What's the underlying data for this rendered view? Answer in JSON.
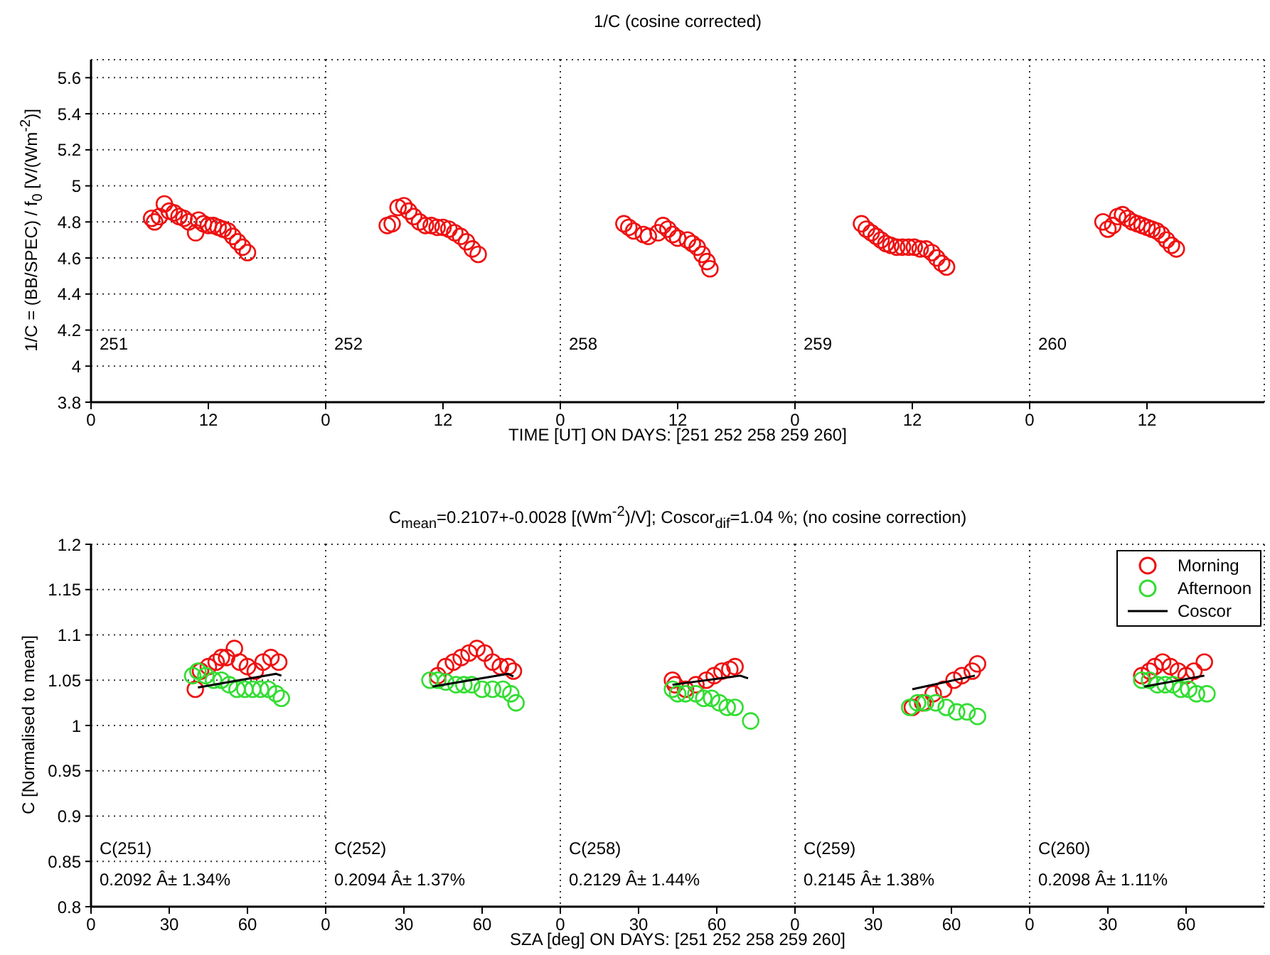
{
  "chart_data": [
    {
      "type": "scatter",
      "ylabel": "1/C = (BB/SPEC) / f$_{0}$  [V/(Wm$^{-2}$)]",
      "marker": "circle",
      "grid": true,
      "xlim": [
        0,
        24
      ],
      "xticks": [
        0,
        12
      ],
      "ylim": [
        3.8,
        5.7
      ],
      "yticks": [
        3.8,
        4,
        4.2,
        4.4,
        4.6,
        4.8,
        5,
        5.2,
        5.4,
        5.6
      ],
      "annotations": [
        "251"
      ],
      "color": "#ee1111",
      "x": [
        6.2,
        6.5,
        7,
        7.5,
        8,
        8.5,
        9,
        9.5,
        10,
        10.7,
        11,
        11.5,
        12,
        12.5,
        13,
        13.5,
        14,
        14.5,
        15,
        15.5,
        16
      ],
      "values": [
        4.82,
        4.8,
        4.83,
        4.9,
        4.86,
        4.85,
        4.83,
        4.82,
        4.8,
        4.74,
        4.81,
        4.79,
        4.78,
        4.78,
        4.77,
        4.76,
        4.75,
        4.72,
        4.69,
        4.66,
        4.63
      ]
    },
    {
      "type": "scatter",
      "marker": "circle",
      "grid": true,
      "tick_labels": "x",
      "xlim": [
        0,
        24
      ],
      "xticks": [
        0,
        12
      ],
      "ylim": [
        3.8,
        5.7
      ],
      "yticks": [
        3.8,
        4,
        4.2,
        4.4,
        4.6,
        4.8,
        5,
        5.2,
        5.4,
        5.6
      ],
      "annotations": [
        "252"
      ],
      "color": "#ee1111",
      "x": [
        6.3,
        6.8,
        7.4,
        8,
        8.5,
        9,
        9.6,
        10.2,
        10.8,
        11.4,
        12,
        12.6,
        13.2,
        13.8,
        14.4,
        15,
        15.6
      ],
      "values": [
        4.78,
        4.79,
        4.88,
        4.89,
        4.86,
        4.83,
        4.8,
        4.78,
        4.78,
        4.77,
        4.77,
        4.76,
        4.74,
        4.72,
        4.69,
        4.65,
        4.62
      ]
    },
    {
      "type": "scatter",
      "title": "1/C (cosine corrected)",
      "xlabel": "TIME [UT]  ON  DAYS: [251  252  258  259  260]",
      "marker": "circle",
      "grid": true,
      "tick_labels": "x",
      "xlim": [
        0,
        24
      ],
      "xticks": [
        0,
        12
      ],
      "ylim": [
        3.8,
        5.7
      ],
      "yticks": [
        3.8,
        4,
        4.2,
        4.4,
        4.6,
        4.8,
        5,
        5.2,
        5.4,
        5.6
      ],
      "annotations": [
        "258"
      ],
      "color": "#ee1111",
      "x": [
        6.5,
        7,
        7.5,
        8.5,
        9,
        10,
        10.5,
        11,
        11.5,
        12,
        13,
        13.5,
        14,
        14.5,
        15,
        15.3
      ],
      "values": [
        4.79,
        4.77,
        4.75,
        4.73,
        4.72,
        4.74,
        4.78,
        4.76,
        4.73,
        4.71,
        4.7,
        4.68,
        4.66,
        4.62,
        4.58,
        4.54
      ]
    },
    {
      "type": "scatter",
      "marker": "circle",
      "grid": true,
      "tick_labels": "x",
      "xlim": [
        0,
        24
      ],
      "xticks": [
        0,
        12
      ],
      "ylim": [
        3.8,
        5.7
      ],
      "yticks": [
        3.8,
        4,
        4.2,
        4.4,
        4.6,
        4.8,
        5,
        5.2,
        5.4,
        5.6
      ],
      "annotations": [
        "259"
      ],
      "color": "#ee1111",
      "x": [
        6.8,
        7.3,
        7.8,
        8.3,
        8.8,
        9.3,
        9.8,
        10.4,
        11,
        11.6,
        12.2,
        12.8,
        13.4,
        14,
        14.5,
        15,
        15.5
      ],
      "values": [
        4.79,
        4.76,
        4.74,
        4.72,
        4.7,
        4.68,
        4.67,
        4.66,
        4.66,
        4.66,
        4.66,
        4.65,
        4.65,
        4.63,
        4.6,
        4.57,
        4.55
      ]
    },
    {
      "type": "scatter",
      "marker": "circle",
      "grid": true,
      "tick_labels": "x",
      "xlim": [
        0,
        24
      ],
      "xticks": [
        0,
        12
      ],
      "ylim": [
        3.8,
        5.7
      ],
      "yticks": [
        3.8,
        4,
        4.2,
        4.4,
        4.6,
        4.8,
        5,
        5.2,
        5.4,
        5.6
      ],
      "annotations": [
        "260"
      ],
      "color": "#ee1111",
      "x": [
        7.5,
        8,
        8.5,
        9,
        9.5,
        10,
        10.5,
        11,
        11.5,
        12,
        12.5,
        13,
        13.5,
        14,
        14.5,
        15
      ],
      "values": [
        4.8,
        4.76,
        4.78,
        4.83,
        4.84,
        4.82,
        4.8,
        4.79,
        4.78,
        4.77,
        4.76,
        4.75,
        4.73,
        4.7,
        4.67,
        4.65
      ]
    },
    {
      "type": "scatter",
      "ylabel": "C [Normalised to mean]",
      "marker": "circle",
      "grid": true,
      "xlim": [
        0,
        90
      ],
      "xticks": [
        0,
        30,
        60
      ],
      "ylim": [
        0.8,
        1.2
      ],
      "yticks": [
        0.8,
        0.85,
        0.9,
        0.95,
        1,
        1.05,
        1.1,
        1.15,
        1.2
      ],
      "annotations": [
        "C(251)",
        "0.2092 Â± 1.34%"
      ],
      "series": [
        {
          "color": "#ee1111",
          "x": [
            40,
            42,
            45,
            48,
            50,
            52,
            55,
            57,
            60,
            63,
            66,
            69,
            72
          ],
          "values": [
            1.04,
            1.06,
            1.065,
            1.07,
            1.075,
            1.075,
            1.085,
            1.07,
            1.065,
            1.06,
            1.07,
            1.075,
            1.07
          ]
        },
        {
          "color": "#33dd33",
          "x": [
            39,
            41,
            44,
            47,
            50,
            53,
            56,
            59,
            62,
            65,
            68,
            71,
            73
          ],
          "values": [
            1.055,
            1.06,
            1.055,
            1.05,
            1.05,
            1.045,
            1.04,
            1.04,
            1.04,
            1.04,
            1.04,
            1.035,
            1.03
          ]
        },
        {
          "type": "line",
          "marker": "none",
          "color": "#000000",
          "x": [
            41,
            71,
            73
          ],
          "values": [
            1.042,
            1.057,
            1.055
          ]
        }
      ]
    },
    {
      "type": "scatter",
      "marker": "circle",
      "grid": true,
      "tick_labels": "x",
      "xlim": [
        0,
        90
      ],
      "xticks": [
        0,
        30,
        60
      ],
      "ylim": [
        0.8,
        1.2
      ],
      "yticks": [
        0.8,
        0.85,
        0.9,
        0.95,
        1,
        1.05,
        1.1,
        1.15,
        1.2
      ],
      "annotations": [
        "C(252)",
        "0.2094 Â± 1.37%"
      ],
      "series": [
        {
          "color": "#ee1111",
          "x": [
            43,
            46,
            49,
            52,
            55,
            58,
            61,
            64,
            67,
            70,
            72
          ],
          "values": [
            1.055,
            1.065,
            1.07,
            1.075,
            1.08,
            1.085,
            1.08,
            1.07,
            1.065,
            1.065,
            1.06
          ]
        },
        {
          "color": "#33dd33",
          "x": [
            40,
            43,
            46,
            50,
            53,
            56,
            60,
            64,
            68,
            71,
            73
          ],
          "values": [
            1.05,
            1.05,
            1.048,
            1.045,
            1.045,
            1.045,
            1.04,
            1.04,
            1.04,
            1.035,
            1.025
          ]
        },
        {
          "type": "line",
          "marker": "none",
          "color": "#000000",
          "x": [
            41,
            70,
            72
          ],
          "values": [
            1.043,
            1.057,
            1.054
          ]
        }
      ]
    },
    {
      "type": "scatter",
      "title": "C$_{mean}$=0.2107+-0.0028 [(Wm$^{-2}$)/V]; Coscor$_{dif}$=1.04 %; (no cosine correction)",
      "xlabel": "SZA [deg]  ON  DAYS: [251  252  258  259  260]",
      "marker": "circle",
      "grid": true,
      "tick_labels": "x",
      "xlim": [
        0,
        90
      ],
      "xticks": [
        0,
        30,
        60
      ],
      "ylim": [
        0.8,
        1.2
      ],
      "yticks": [
        0.8,
        0.85,
        0.9,
        0.95,
        1,
        1.05,
        1.1,
        1.15,
        1.2
      ],
      "annotations": [
        "C(258)",
        "0.2129 Â± 1.44%"
      ],
      "series": [
        {
          "color": "#ee1111",
          "x": [
            43,
            44,
            48,
            52,
            56,
            59,
            62,
            65,
            67
          ],
          "values": [
            1.05,
            1.045,
            1.04,
            1.045,
            1.05,
            1.055,
            1.06,
            1.062,
            1.065
          ]
        },
        {
          "color": "#33dd33",
          "x": [
            43,
            45,
            48,
            52,
            55,
            58,
            61,
            64,
            67,
            73
          ],
          "values": [
            1.04,
            1.035,
            1.035,
            1.035,
            1.03,
            1.03,
            1.025,
            1.02,
            1.02,
            1.005
          ]
        },
        {
          "type": "line",
          "marker": "none",
          "color": "#000000",
          "x": [
            43,
            69,
            72
          ],
          "values": [
            1.045,
            1.055,
            1.052
          ]
        }
      ]
    },
    {
      "type": "scatter",
      "marker": "circle",
      "grid": true,
      "tick_labels": "x",
      "xlim": [
        0,
        90
      ],
      "xticks": [
        0,
        30,
        60
      ],
      "ylim": [
        0.8,
        1.2
      ],
      "yticks": [
        0.8,
        0.85,
        0.9,
        0.95,
        1,
        1.05,
        1.1,
        1.15,
        1.2
      ],
      "annotations": [
        "C(259)",
        "0.2145 Â± 1.38%"
      ],
      "series": [
        {
          "color": "#ee1111",
          "x": [
            45,
            49,
            53,
            57,
            61,
            64,
            68,
            70
          ],
          "values": [
            1.02,
            1.025,
            1.035,
            1.04,
            1.05,
            1.055,
            1.06,
            1.068
          ]
        },
        {
          "color": "#33dd33",
          "x": [
            44,
            47,
            50,
            54,
            58,
            62,
            66,
            70
          ],
          "values": [
            1.02,
            1.025,
            1.025,
            1.025,
            1.02,
            1.015,
            1.015,
            1.01
          ]
        },
        {
          "type": "line",
          "marker": "none",
          "color": "#000000",
          "x": [
            45,
            69
          ],
          "values": [
            1.04,
            1.055
          ]
        }
      ]
    },
    {
      "type": "scatter",
      "marker": "circle",
      "grid": true,
      "tick_labels": "x",
      "legend": "top right",
      "xlim": [
        0,
        90
      ],
      "xticks": [
        0,
        30,
        60
      ],
      "ylim": [
        0.8,
        1.2
      ],
      "yticks": [
        0.8,
        0.85,
        0.9,
        0.95,
        1,
        1.05,
        1.1,
        1.15,
        1.2
      ],
      "annotations": [
        "C(260)",
        "0.2098 Â± 1.11%"
      ],
      "series": [
        {
          "name": "Morning",
          "color": "#ee1111",
          "x": [
            43,
            46,
            48,
            51,
            54,
            57,
            60,
            63,
            67
          ],
          "values": [
            1.055,
            1.06,
            1.065,
            1.07,
            1.065,
            1.06,
            1.055,
            1.06,
            1.07
          ]
        },
        {
          "name": "Afternoon",
          "color": "#33dd33",
          "x": [
            43,
            46,
            49,
            52,
            55,
            58,
            61,
            64,
            68
          ],
          "values": [
            1.05,
            1.05,
            1.045,
            1.045,
            1.045,
            1.04,
            1.04,
            1.035,
            1.035
          ]
        },
        {
          "name": "Coscor",
          "type": "line",
          "marker": "none",
          "color": "#000000",
          "x": [
            44,
            67
          ],
          "values": [
            1.043,
            1.055
          ]
        }
      ]
    }
  ]
}
